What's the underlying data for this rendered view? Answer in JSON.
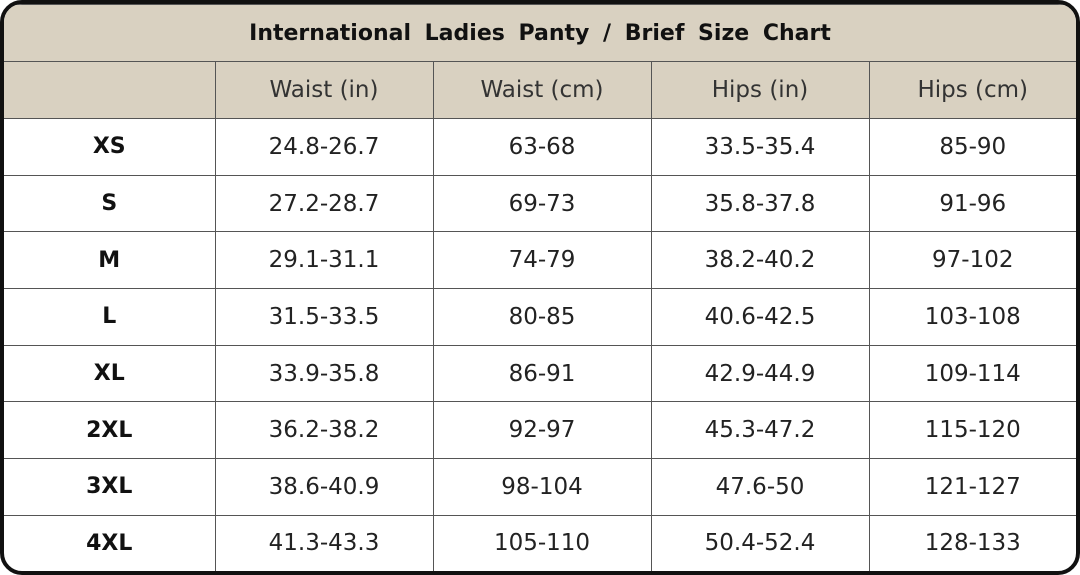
{
  "table": {
    "title": "International Ladies Panty / Brief Size Chart",
    "columns": [
      "Waist (in)",
      "Waist (cm)",
      "Hips (in)",
      "Hips (cm)"
    ],
    "rows": [
      [
        "XS",
        "24.8-26.7",
        "63-68",
        "33.5-35.4",
        "85-90"
      ],
      [
        "S",
        "27.2-28.7",
        "69-73",
        "35.8-37.8",
        "91-96"
      ],
      [
        "M",
        "29.1-31.1",
        "74-79",
        "38.2-40.2",
        "97-102"
      ],
      [
        "L",
        "31.5-33.5",
        "80-85",
        "40.6-42.5",
        "103-108"
      ],
      [
        "XL",
        "33.9-35.8",
        "86-91",
        "42.9-44.9",
        "109-114"
      ],
      [
        "2XL",
        "36.2-38.2",
        "92-97",
        "45.3-47.2",
        "115-120"
      ],
      [
        "3XL",
        "38.6-40.9",
        "98-104",
        "47.6-50",
        "121-127"
      ],
      [
        "4XL",
        "41.3-43.3",
        "105-110",
        "50.4-52.4",
        "128-133"
      ]
    ]
  }
}
